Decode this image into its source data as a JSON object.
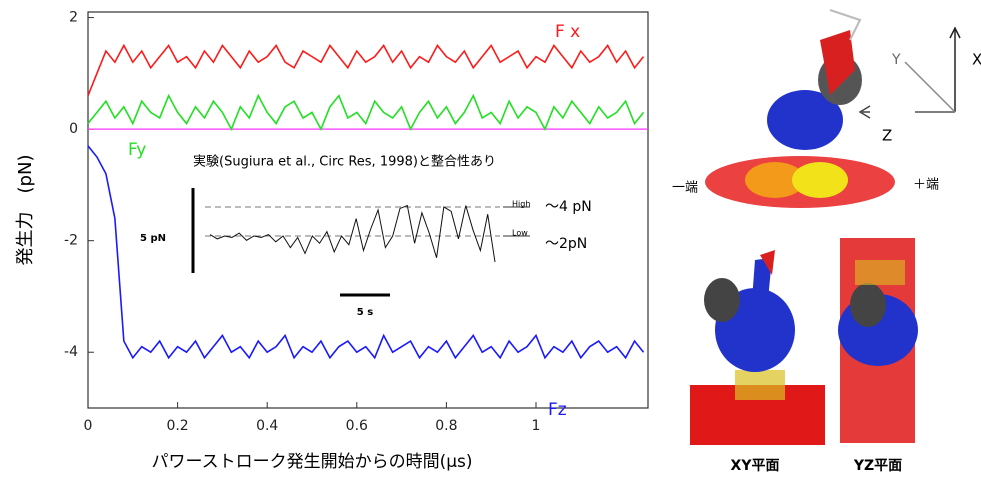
{
  "chart_data": {
    "type": "line",
    "xlabel": "パワーストローク発生開始からの時間(μs)",
    "ylabel": "発生力　(pN)",
    "xlim": [
      0,
      1.25
    ],
    "ylim": [
      -5,
      2.1
    ],
    "xticks": [
      0,
      0.2,
      0.4,
      0.6,
      0.8,
      1
    ],
    "yticks": [
      2,
      0,
      -2,
      -4
    ],
    "reference_line": {
      "value": 0,
      "color": "#ff33ff"
    },
    "x": [
      0,
      0.02,
      0.04,
      0.06,
      0.08,
      0.1,
      0.12,
      0.14,
      0.16,
      0.18,
      0.2,
      0.22,
      0.24,
      0.26,
      0.28,
      0.3,
      0.32,
      0.34,
      0.36,
      0.38,
      0.4,
      0.42,
      0.44,
      0.46,
      0.48,
      0.5,
      0.52,
      0.54,
      0.56,
      0.58,
      0.6,
      0.62,
      0.64,
      0.66,
      0.68,
      0.7,
      0.72,
      0.74,
      0.76,
      0.78,
      0.8,
      0.82,
      0.84,
      0.86,
      0.88,
      0.9,
      0.92,
      0.94,
      0.96,
      0.98,
      1,
      1.02,
      1.04,
      1.06,
      1.08,
      1.1,
      1.12,
      1.14,
      1.16,
      1.18,
      1.2,
      1.22,
      1.24
    ],
    "series": [
      {
        "name": "F x",
        "color": "#ff1a1a",
        "values": [
          0.6,
          1.0,
          1.4,
          1.2,
          1.5,
          1.2,
          1.4,
          1.1,
          1.3,
          1.5,
          1.2,
          1.3,
          1.1,
          1.4,
          1.2,
          1.5,
          1.3,
          1.1,
          1.4,
          1.2,
          1.3,
          1.5,
          1.2,
          1.1,
          1.4,
          1.3,
          1.2,
          1.5,
          1.3,
          1.1,
          1.4,
          1.2,
          1.3,
          1.5,
          1.2,
          1.4,
          1.1,
          1.3,
          1.2,
          1.5,
          1.3,
          1.2,
          1.4,
          1.1,
          1.3,
          1.5,
          1.2,
          1.3,
          1.4,
          1.1,
          1.3,
          1.2,
          1.5,
          1.3,
          1.1,
          1.4,
          1.2,
          1.3,
          1.5,
          1.2,
          1.4,
          1.1,
          1.3
        ]
      },
      {
        "name": "Fy",
        "color": "#22e022",
        "values": [
          0.1,
          0.3,
          0.5,
          0.2,
          0.4,
          0.1,
          0.5,
          0.3,
          0.2,
          0.6,
          0.3,
          0.1,
          0.4,
          0.2,
          0.5,
          0.3,
          0.0,
          0.4,
          0.2,
          0.6,
          0.3,
          0.1,
          0.4,
          0.5,
          0.2,
          0.3,
          0.0,
          0.4,
          0.6,
          0.2,
          0.3,
          0.1,
          0.5,
          0.3,
          0.2,
          0.4,
          0.0,
          0.3,
          0.5,
          0.2,
          0.4,
          0.1,
          0.3,
          0.6,
          0.2,
          0.3,
          0.1,
          0.5,
          0.2,
          0.4,
          0.3,
          0.0,
          0.4,
          0.2,
          0.5,
          0.3,
          0.1,
          0.4,
          0.2,
          0.3,
          0.5,
          0.1,
          0.3
        ]
      },
      {
        "name": "Fz",
        "color": "#1a1aff",
        "values": [
          -0.3,
          -0.5,
          -0.8,
          -1.6,
          -3.8,
          -4.1,
          -3.9,
          -4.0,
          -3.8,
          -4.1,
          -3.9,
          -4.0,
          -3.8,
          -4.1,
          -3.9,
          -3.7,
          -4.0,
          -3.9,
          -4.1,
          -3.8,
          -4.0,
          -3.9,
          -3.7,
          -4.1,
          -3.9,
          -4.0,
          -3.8,
          -4.1,
          -3.9,
          -3.8,
          -4.0,
          -3.9,
          -4.1,
          -3.7,
          -4.0,
          -3.9,
          -3.8,
          -4.1,
          -3.9,
          -4.0,
          -3.8,
          -4.1,
          -3.9,
          -3.7,
          -4.0,
          -3.9,
          -4.1,
          -3.8,
          -4.0,
          -3.9,
          -3.7,
          -4.1,
          -3.9,
          -4.0,
          -3.8,
          -4.1,
          -3.9,
          -3.8,
          -4.0,
          -3.9,
          -4.1,
          -3.8,
          -4.0
        ]
      }
    ],
    "inset": {
      "title": "実験(Sugiura et al., Circ Res, 1998)と整合性あり",
      "scale_label": "5 pN",
      "time_label": "5 s",
      "levels": [
        {
          "value": 4,
          "label": "High",
          "note": "～4 pN"
        },
        {
          "value": 2,
          "label": "Low",
          "note": "～2pN"
        }
      ],
      "values": [
        2.1,
        1.8,
        2.0,
        1.9,
        2.2,
        1.7,
        2.0,
        1.9,
        2.1,
        1.6,
        2.0,
        1.2,
        1.9,
        0.8,
        2.0,
        1.5,
        2.3,
        0.9,
        2.0,
        1.4,
        3.2,
        1.0,
        2.5,
        3.8,
        1.2,
        2.0,
        3.9,
        4.1,
        1.5,
        3.6,
        2.2,
        0.5,
        4.0,
        3.7,
        1.8,
        4.1,
        2.4,
        1.0,
        3.5,
        0.2
      ]
    }
  },
  "structures": {
    "axes": {
      "x": "X",
      "y": "Y",
      "z": "Z"
    },
    "minus_end": "一端",
    "plus_end": "＋端",
    "panels": [
      "XY平面",
      "YZ平面"
    ]
  }
}
